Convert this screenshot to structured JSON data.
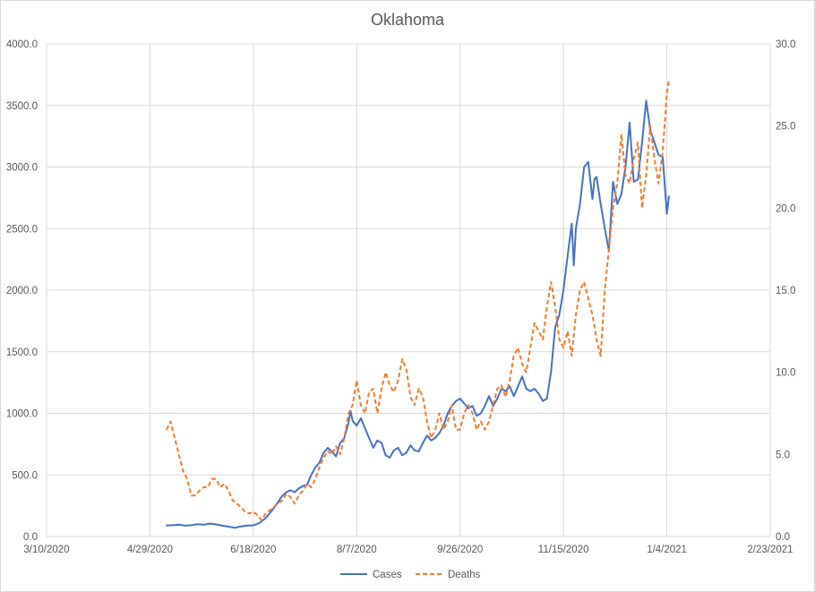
{
  "chart_data": {
    "type": "line",
    "title": "Oklahoma",
    "x_ticks": [
      "3/10/2020",
      "4/29/2020",
      "6/18/2020",
      "8/7/2020",
      "9/26/2020",
      "11/15/2020",
      "1/4/2021",
      "2/23/2021"
    ],
    "y_left_ticks": [
      "0.0",
      "500.0",
      "1000.0",
      "1500.0",
      "2000.0",
      "2500.0",
      "3000.0",
      "3500.0",
      "4000.0"
    ],
    "y_right_ticks": [
      "0.0",
      "5.0",
      "10.0",
      "15.0",
      "20.0",
      "25.0",
      "30.0"
    ],
    "xlim": [
      "3/10/2020",
      "2/23/2021"
    ],
    "ylim_left": [
      0,
      4000
    ],
    "ylim_right": [
      0,
      30
    ],
    "grid": "vertical and horizontal",
    "legend": "bottom",
    "colors": {
      "cases": "#4472c4",
      "deaths": "#ed7d31",
      "grid": "#d9d9d9",
      "text": "#595959"
    },
    "series": [
      {
        "name": "Cases",
        "axis": "left",
        "style": "solid",
        "points": [
          [
            "5/7/2020",
            90
          ],
          [
            "5/10/2020",
            92
          ],
          [
            "5/13/2020",
            95
          ],
          [
            "5/16/2020",
            88
          ],
          [
            "5/19/2020",
            92
          ],
          [
            "5/22/2020",
            100
          ],
          [
            "5/25/2020",
            95
          ],
          [
            "5/28/2020",
            105
          ],
          [
            "5/31/2020",
            98
          ],
          [
            "6/3/2020",
            88
          ],
          [
            "6/6/2020",
            80
          ],
          [
            "6/9/2020",
            70
          ],
          [
            "6/12/2020",
            82
          ],
          [
            "6/15/2020",
            88
          ],
          [
            "6/18/2020",
            90
          ],
          [
            "6/21/2020",
            110
          ],
          [
            "6/24/2020",
            150
          ],
          [
            "6/27/2020",
            210
          ],
          [
            "6/30/2020",
            280
          ],
          [
            "7/2/2020",
            330
          ],
          [
            "7/4/2020",
            360
          ],
          [
            "7/6/2020",
            375
          ],
          [
            "7/8/2020",
            360
          ],
          [
            "7/10/2020",
            390
          ],
          [
            "7/12/2020",
            410
          ],
          [
            "7/14/2020",
            420
          ],
          [
            "7/16/2020",
            500
          ],
          [
            "7/18/2020",
            560
          ],
          [
            "7/20/2020",
            600
          ],
          [
            "7/22/2020",
            680
          ],
          [
            "7/24/2020",
            720
          ],
          [
            "7/26/2020",
            690
          ],
          [
            "7/28/2020",
            650
          ],
          [
            "7/30/2020",
            760
          ],
          [
            "8/1/2020",
            800
          ],
          [
            "8/3/2020",
            920
          ],
          [
            "8/4/2020",
            1020
          ],
          [
            "8/5/2020",
            940
          ],
          [
            "8/7/2020",
            900
          ],
          [
            "8/9/2020",
            960
          ],
          [
            "8/11/2020",
            880
          ],
          [
            "8/13/2020",
            800
          ],
          [
            "8/15/2020",
            720
          ],
          [
            "8/17/2020",
            780
          ],
          [
            "8/19/2020",
            760
          ],
          [
            "8/21/2020",
            660
          ],
          [
            "8/23/2020",
            640
          ],
          [
            "8/25/2020",
            700
          ],
          [
            "8/27/2020",
            720
          ],
          [
            "8/29/2020",
            660
          ],
          [
            "8/31/2020",
            680
          ],
          [
            "9/2/2020",
            740
          ],
          [
            "9/4/2020",
            700
          ],
          [
            "9/6/2020",
            690
          ],
          [
            "9/8/2020",
            760
          ],
          [
            "9/10/2020",
            820
          ],
          [
            "9/12/2020",
            780
          ],
          [
            "9/14/2020",
            800
          ],
          [
            "9/16/2020",
            840
          ],
          [
            "9/18/2020",
            900
          ],
          [
            "9/20/2020",
            1000
          ],
          [
            "9/22/2020",
            1060
          ],
          [
            "9/24/2020",
            1100
          ],
          [
            "9/26/2020",
            1120
          ],
          [
            "9/28/2020",
            1080
          ],
          [
            "9/30/2020",
            1040
          ],
          [
            "10/2/2020",
            1060
          ],
          [
            "10/4/2020",
            980
          ],
          [
            "10/6/2020",
            1000
          ],
          [
            "10/8/2020",
            1060
          ],
          [
            "10/10/2020",
            1140
          ],
          [
            "10/12/2020",
            1060
          ],
          [
            "10/14/2020",
            1120
          ],
          [
            "10/16/2020",
            1200
          ],
          [
            "10/18/2020",
            1180
          ],
          [
            "10/20/2020",
            1220
          ],
          [
            "10/22/2020",
            1140
          ],
          [
            "10/24/2020",
            1220
          ],
          [
            "10/26/2020",
            1300
          ],
          [
            "10/28/2020",
            1200
          ],
          [
            "10/30/2020",
            1180
          ],
          [
            "11/1/2020",
            1200
          ],
          [
            "11/3/2020",
            1160
          ],
          [
            "11/5/2020",
            1100
          ],
          [
            "11/7/2020",
            1120
          ],
          [
            "11/9/2020",
            1340
          ],
          [
            "11/11/2020",
            1700
          ],
          [
            "11/13/2020",
            1800
          ],
          [
            "11/15/2020",
            2000
          ],
          [
            "11/17/2020",
            2280
          ],
          [
            "11/19/2020",
            2540
          ],
          [
            "11/20/2020",
            2200
          ],
          [
            "11/21/2020",
            2500
          ],
          [
            "11/23/2020",
            2700
          ],
          [
            "11/25/2020",
            3000
          ],
          [
            "11/27/2020",
            3040
          ],
          [
            "11/29/2020",
            2740
          ],
          [
            "11/30/2020",
            2900
          ],
          [
            "12/1/2020",
            2920
          ],
          [
            "12/3/2020",
            2700
          ],
          [
            "12/5/2020",
            2500
          ],
          [
            "12/7/2020",
            2320
          ],
          [
            "12/9/2020",
            2880
          ],
          [
            "12/11/2020",
            2700
          ],
          [
            "12/13/2020",
            2780
          ],
          [
            "12/15/2020",
            3000
          ],
          [
            "12/17/2020",
            3360
          ],
          [
            "12/19/2020",
            2880
          ],
          [
            "12/21/2020",
            2900
          ],
          [
            "12/23/2020",
            3200
          ],
          [
            "12/25/2020",
            3540
          ],
          [
            "12/27/2020",
            3300
          ],
          [
            "12/29/2020",
            3200
          ],
          [
            "12/31/2020",
            3100
          ],
          [
            "1/2/2021",
            3080
          ],
          [
            "1/4/2021",
            2620
          ],
          [
            "1/5/2021",
            2760
          ]
        ]
      },
      {
        "name": "Deaths",
        "axis": "right",
        "style": "dashed",
        "points": [
          [
            "5/7/2020",
            6.5
          ],
          [
            "5/9/2020",
            7.0
          ],
          [
            "5/11/2020",
            6.0
          ],
          [
            "5/13/2020",
            5.0
          ],
          [
            "5/15/2020",
            4.0
          ],
          [
            "5/17/2020",
            3.5
          ],
          [
            "5/19/2020",
            2.5
          ],
          [
            "5/21/2020",
            2.5
          ],
          [
            "5/23/2020",
            2.8
          ],
          [
            "5/25/2020",
            3.0
          ],
          [
            "5/27/2020",
            3.0
          ],
          [
            "5/29/2020",
            3.5
          ],
          [
            "5/31/2020",
            3.5
          ],
          [
            "6/2/2020",
            3.0
          ],
          [
            "6/4/2020",
            3.2
          ],
          [
            "6/6/2020",
            2.8
          ],
          [
            "6/8/2020",
            2.2
          ],
          [
            "6/10/2020",
            2.0
          ],
          [
            "6/12/2020",
            1.8
          ],
          [
            "6/14/2020",
            1.5
          ],
          [
            "6/16/2020",
            1.4
          ],
          [
            "6/18/2020",
            1.5
          ],
          [
            "6/20/2020",
            1.3
          ],
          [
            "6/22/2020",
            1.0
          ],
          [
            "6/24/2020",
            1.4
          ],
          [
            "6/26/2020",
            1.6
          ],
          [
            "6/28/2020",
            1.8
          ],
          [
            "6/30/2020",
            2.0
          ],
          [
            "7/2/2020",
            2.2
          ],
          [
            "7/4/2020",
            2.6
          ],
          [
            "7/6/2020",
            2.4
          ],
          [
            "7/8/2020",
            2.0
          ],
          [
            "7/10/2020",
            2.5
          ],
          [
            "7/12/2020",
            2.8
          ],
          [
            "7/14/2020",
            3.2
          ],
          [
            "7/16/2020",
            3.0
          ],
          [
            "7/18/2020",
            3.5
          ],
          [
            "7/20/2020",
            4.2
          ],
          [
            "7/22/2020",
            4.8
          ],
          [
            "7/24/2020",
            5.2
          ],
          [
            "7/26/2020",
            5.0
          ],
          [
            "7/28/2020",
            5.5
          ],
          [
            "7/30/2020",
            5.0
          ],
          [
            "8/1/2020",
            6.0
          ],
          [
            "8/3/2020",
            7.5
          ],
          [
            "8/5/2020",
            8.0
          ],
          [
            "8/7/2020",
            9.5
          ],
          [
            "8/9/2020",
            8.0
          ],
          [
            "8/11/2020",
            7.5
          ],
          [
            "8/13/2020",
            8.8
          ],
          [
            "8/15/2020",
            9.0
          ],
          [
            "8/17/2020",
            7.5
          ],
          [
            "8/19/2020",
            9.0
          ],
          [
            "8/21/2020",
            10.0
          ],
          [
            "8/23/2020",
            9.2
          ],
          [
            "8/25/2020",
            8.8
          ],
          [
            "8/27/2020",
            9.5
          ],
          [
            "8/29/2020",
            10.8
          ],
          [
            "8/31/2020",
            10.2
          ],
          [
            "9/2/2020",
            8.5
          ],
          [
            "9/4/2020",
            8.0
          ],
          [
            "9/6/2020",
            9.0
          ],
          [
            "9/8/2020",
            8.5
          ],
          [
            "9/10/2020",
            7.0
          ],
          [
            "9/12/2020",
            6.0
          ],
          [
            "9/14/2020",
            6.5
          ],
          [
            "9/16/2020",
            7.5
          ],
          [
            "9/18/2020",
            6.5
          ],
          [
            "9/20/2020",
            7.0
          ],
          [
            "9/22/2020",
            8.0
          ],
          [
            "9/24/2020",
            6.5
          ],
          [
            "9/26/2020",
            6.5
          ],
          [
            "9/28/2020",
            7.5
          ],
          [
            "9/30/2020",
            8.0
          ],
          [
            "10/2/2020",
            7.5
          ],
          [
            "10/4/2020",
            6.5
          ],
          [
            "10/6/2020",
            7.0
          ],
          [
            "10/8/2020",
            6.5
          ],
          [
            "10/10/2020",
            7.0
          ],
          [
            "10/12/2020",
            8.0
          ],
          [
            "10/14/2020",
            9.0
          ],
          [
            "10/16/2020",
            9.2
          ],
          [
            "10/18/2020",
            8.5
          ],
          [
            "10/20/2020",
            9.5
          ],
          [
            "10/22/2020",
            11.0
          ],
          [
            "10/24/2020",
            11.5
          ],
          [
            "10/26/2020",
            10.5
          ],
          [
            "10/28/2020",
            10.0
          ],
          [
            "10/30/2020",
            11.5
          ],
          [
            "11/1/2020",
            13.0
          ],
          [
            "11/3/2020",
            12.5
          ],
          [
            "11/5/2020",
            12.0
          ],
          [
            "11/7/2020",
            14.0
          ],
          [
            "11/9/2020",
            15.5
          ],
          [
            "11/11/2020",
            14.0
          ],
          [
            "11/13/2020",
            12.0
          ],
          [
            "11/15/2020",
            11.5
          ],
          [
            "11/17/2020",
            12.5
          ],
          [
            "11/19/2020",
            11.0
          ],
          [
            "11/21/2020",
            13.5
          ],
          [
            "11/23/2020",
            15.0
          ],
          [
            "11/25/2020",
            15.5
          ],
          [
            "11/27/2020",
            14.5
          ],
          [
            "11/29/2020",
            13.5
          ],
          [
            "12/1/2020",
            12.0
          ],
          [
            "12/3/2020",
            11.0
          ],
          [
            "12/5/2020",
            15.0
          ],
          [
            "12/7/2020",
            17.5
          ],
          [
            "12/9/2020",
            20.0
          ],
          [
            "12/11/2020",
            21.5
          ],
          [
            "12/13/2020",
            24.5
          ],
          [
            "12/15/2020",
            22.0
          ],
          [
            "12/17/2020",
            21.5
          ],
          [
            "12/19/2020",
            23.0
          ],
          [
            "12/21/2020",
            24.0
          ],
          [
            "12/23/2020",
            20.0
          ],
          [
            "12/25/2020",
            22.0
          ],
          [
            "12/27/2020",
            25.0
          ],
          [
            "12/29/2020",
            23.0
          ],
          [
            "12/31/2020",
            21.5
          ],
          [
            "1/2/2021",
            23.5
          ],
          [
            "1/4/2021",
            27.0
          ],
          [
            "1/5/2021",
            27.8
          ]
        ]
      }
    ]
  }
}
